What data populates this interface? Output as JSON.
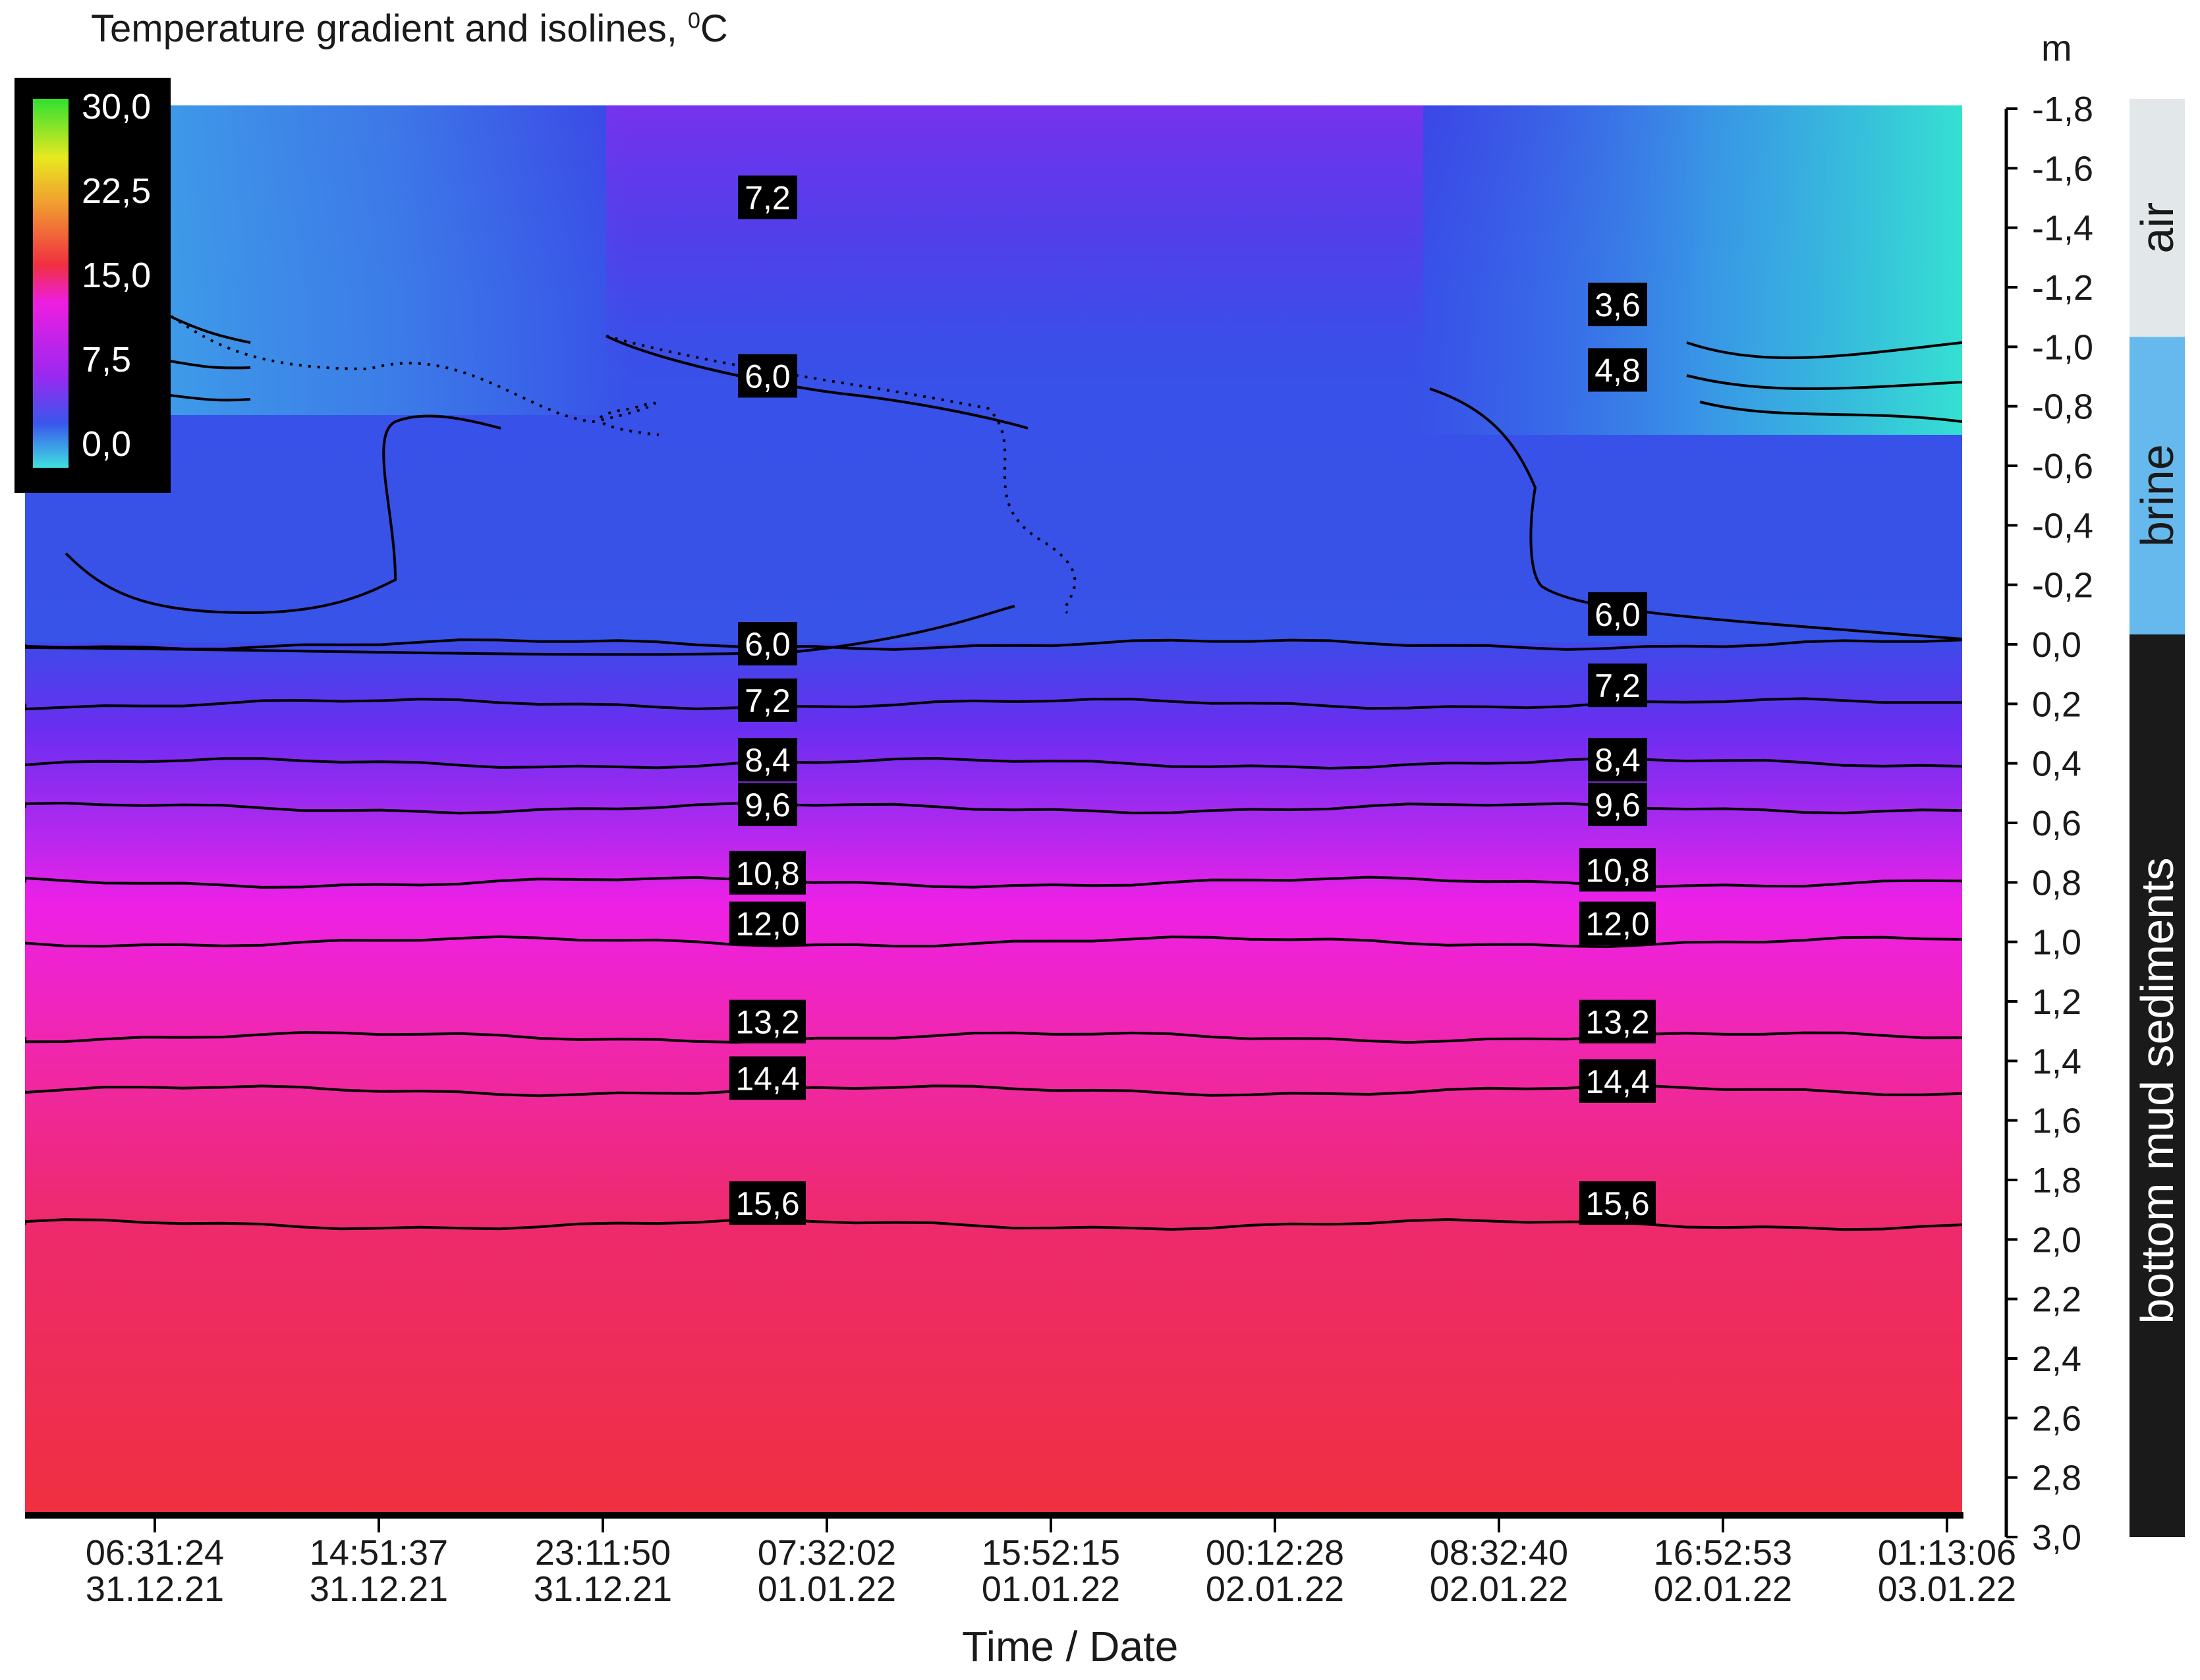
{
  "title": "Temperature gradient and isolines, ",
  "title_unit_sup": "0",
  "title_unit": "C",
  "depth_unit": "m",
  "chart_data": {
    "type": "heatmap",
    "title": "Temperature gradient and isolines, °C",
    "xlabel": "Time / Date",
    "ylabel": "m",
    "x_ticks": [
      {
        "time": "06:31:24",
        "date": "31.12.21"
      },
      {
        "time": "14:51:37",
        "date": "31.12.21"
      },
      {
        "time": "23:11:50",
        "date": "31.12.21"
      },
      {
        "time": "07:32:02",
        "date": "01.01.22"
      },
      {
        "time": "15:52:15",
        "date": "01.01.22"
      },
      {
        "time": "00:12:28",
        "date": "02.01.22"
      },
      {
        "time": "08:32:40",
        "date": "02.01.22"
      },
      {
        "time": "16:52:53",
        "date": "02.01.22"
      },
      {
        "time": "01:13:06",
        "date": "03.01.22"
      }
    ],
    "y_ticks": [
      "-1,8",
      "-1,6",
      "-1,4",
      "-1,2",
      "-1,0",
      "-0,8",
      "-0,6",
      "-0,4",
      "-0,2",
      "0,0",
      "0,2",
      "0,4",
      "0,6",
      "0,8",
      "1,0",
      "1,2",
      "1,4",
      "1,6",
      "1,8",
      "2,0",
      "2,2",
      "2,4",
      "2,6",
      "2,8",
      "3,0"
    ],
    "ylim": [
      -1.8,
      3.0
    ],
    "y_inverted": true,
    "colorbar": {
      "range": [
        0,
        30
      ],
      "tick_labels": [
        "30,0",
        "22,5",
        "15,0",
        "7,5",
        "0,0"
      ],
      "colors": [
        "#3fe0e0",
        "#3a57ec",
        "#9a28f0",
        "#ee1ee0",
        "#f03040",
        "#f0a030",
        "#e8e820",
        "#30e030"
      ]
    },
    "layers": [
      {
        "name": "air",
        "from": -1.8,
        "to": -1.0,
        "color": "#e2e7ea"
      },
      {
        "name": "brine",
        "from": -1.0,
        "to": 0.0,
        "color": "#66b9ec"
      },
      {
        "name": "bottom mud sediments",
        "from": 0.0,
        "to": 3.0,
        "color": "#1a1a1a"
      }
    ],
    "isolines": [
      {
        "value": "6,0",
        "depth": 0.0
      },
      {
        "value": "7,2",
        "depth": 0.2
      },
      {
        "value": "8,4",
        "depth": 0.4
      },
      {
        "value": "9,6",
        "depth": 0.55
      },
      {
        "value": "10,8",
        "depth": 0.8
      },
      {
        "value": "12,0",
        "depth": 1.0
      },
      {
        "value": "13,2",
        "depth": 1.32
      },
      {
        "value": "14,4",
        "depth": 1.5
      },
      {
        "value": "15,6",
        "depth": 1.95
      }
    ],
    "isoline_labels": [
      {
        "text": "7,2",
        "x": 3.75,
        "y": -1.5
      },
      {
        "text": "6,0",
        "x": 3.75,
        "y": -0.9
      },
      {
        "text": "6,0",
        "x": 3.75,
        "y": 0.0
      },
      {
        "text": "7,2",
        "x": 3.75,
        "y": 0.19
      },
      {
        "text": "8,4",
        "x": 3.75,
        "y": 0.39
      },
      {
        "text": "9,6",
        "x": 3.75,
        "y": 0.54
      },
      {
        "text": "10,8",
        "x": 3.75,
        "y": 0.77
      },
      {
        "text": "12,0",
        "x": 3.75,
        "y": 0.94
      },
      {
        "text": "13,2",
        "x": 3.75,
        "y": 1.27
      },
      {
        "text": "14,4",
        "x": 3.75,
        "y": 1.46
      },
      {
        "text": "15,6",
        "x": 3.75,
        "y": 1.88
      },
      {
        "text": "3,6",
        "x": 7.5,
        "y": -1.14
      },
      {
        "text": "4,8",
        "x": 7.5,
        "y": -0.92
      },
      {
        "text": "6,0",
        "x": 7.5,
        "y": -0.1
      },
      {
        "text": "7,2",
        "x": 7.5,
        "y": 0.14
      },
      {
        "text": "8,4",
        "x": 7.5,
        "y": 0.39
      },
      {
        "text": "9,6",
        "x": 7.5,
        "y": 0.54
      },
      {
        "text": "10,8",
        "x": 7.5,
        "y": 0.76
      },
      {
        "text": "12,0",
        "x": 7.5,
        "y": 0.94
      },
      {
        "text": "13,2",
        "x": 7.5,
        "y": 1.27
      },
      {
        "text": "14,4",
        "x": 7.5,
        "y": 1.47
      },
      {
        "text": "15,6",
        "x": 7.5,
        "y": 1.88
      }
    ]
  }
}
